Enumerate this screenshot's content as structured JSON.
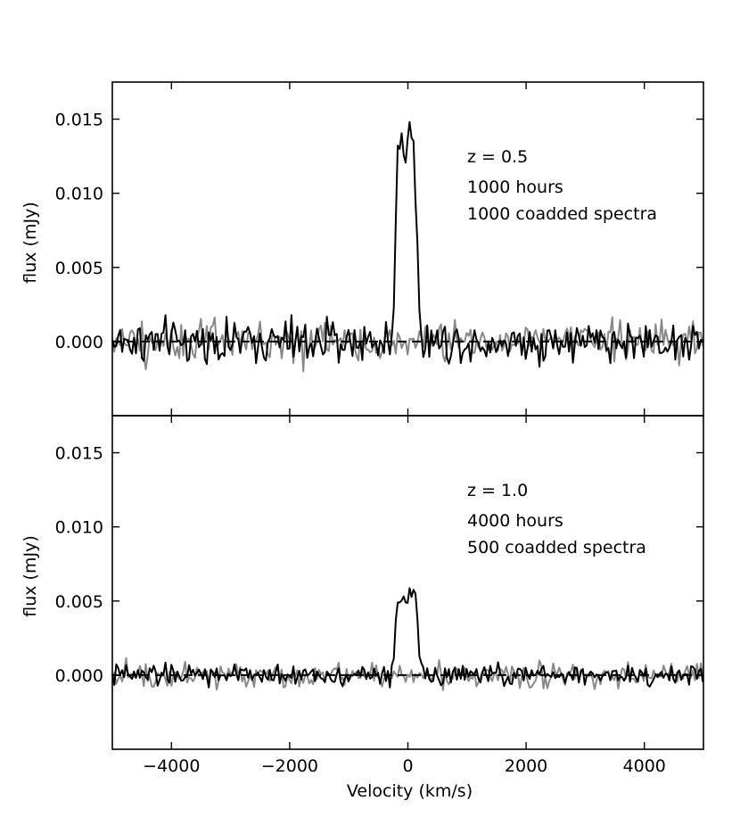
{
  "chart_data": [
    {
      "type": "line",
      "panel": "top",
      "xlim": [
        -5000,
        5000
      ],
      "ylim": [
        -0.005,
        0.0175
      ],
      "ylabel": "flux (mJy)",
      "xlabel": "",
      "yticks": [
        0.0,
        0.005,
        0.01,
        0.015
      ],
      "ytick_labels": [
        "0.000",
        "0.005",
        "0.010",
        "0.015"
      ],
      "xticks": [
        -4000,
        -2000,
        0,
        2000,
        4000
      ],
      "xtick_labels": [],
      "annotations": [
        "z = 0.5",
        "1000 hours",
        "1000 coadded spectra"
      ],
      "baseline": 0.0,
      "grid": false,
      "line_profile": {
        "x": [
          -5000,
          -250,
          -200,
          -150,
          -100,
          -50,
          0,
          50,
          100,
          150,
          200,
          250,
          5000
        ],
        "y": [
          0.0,
          0.0,
          0.0095,
          0.0139,
          0.0141,
          0.012,
          0.0145,
          0.0152,
          0.0135,
          0.0072,
          0.0015,
          0.0,
          0.0
        ]
      },
      "series": [
        {
          "color": "#000000",
          "noise_rms": 0.0012,
          "has_emission_line": true
        },
        {
          "color": "#888888",
          "noise_rms": 0.0011,
          "has_emission_line": false
        }
      ]
    },
    {
      "type": "line",
      "panel": "bottom",
      "xlim": [
        -5000,
        5000
      ],
      "ylim": [
        -0.005,
        0.0175
      ],
      "ylabel": "flux (mJy)",
      "xlabel": "Velocity (km/s)",
      "yticks": [
        0.0,
        0.005,
        0.01,
        0.015
      ],
      "ytick_labels": [
        "0.000",
        "0.005",
        "0.010",
        "0.015"
      ],
      "xticks": [
        -4000,
        -2000,
        0,
        2000,
        4000
      ],
      "xtick_labels": [
        "−4000",
        "−2000",
        "0",
        "2000",
        "4000"
      ],
      "annotations": [
        "z = 1.0",
        "4000 hours",
        "500 coadded spectra"
      ],
      "baseline": 0.0,
      "grid": false,
      "line_profile": {
        "x": [
          -5000,
          -250,
          -200,
          -150,
          -100,
          -50,
          0,
          50,
          100,
          150,
          200,
          250,
          5000
        ],
        "y": [
          0.0,
          0.0,
          0.0038,
          0.0054,
          0.0058,
          0.0052,
          0.0046,
          0.0055,
          0.0059,
          0.0042,
          0.0012,
          0.0,
          0.0
        ]
      },
      "series": [
        {
          "color": "#000000",
          "noise_rms": 0.0006,
          "has_emission_line": true
        },
        {
          "color": "#888888",
          "noise_rms": 0.0007,
          "has_emission_line": false
        }
      ]
    }
  ]
}
